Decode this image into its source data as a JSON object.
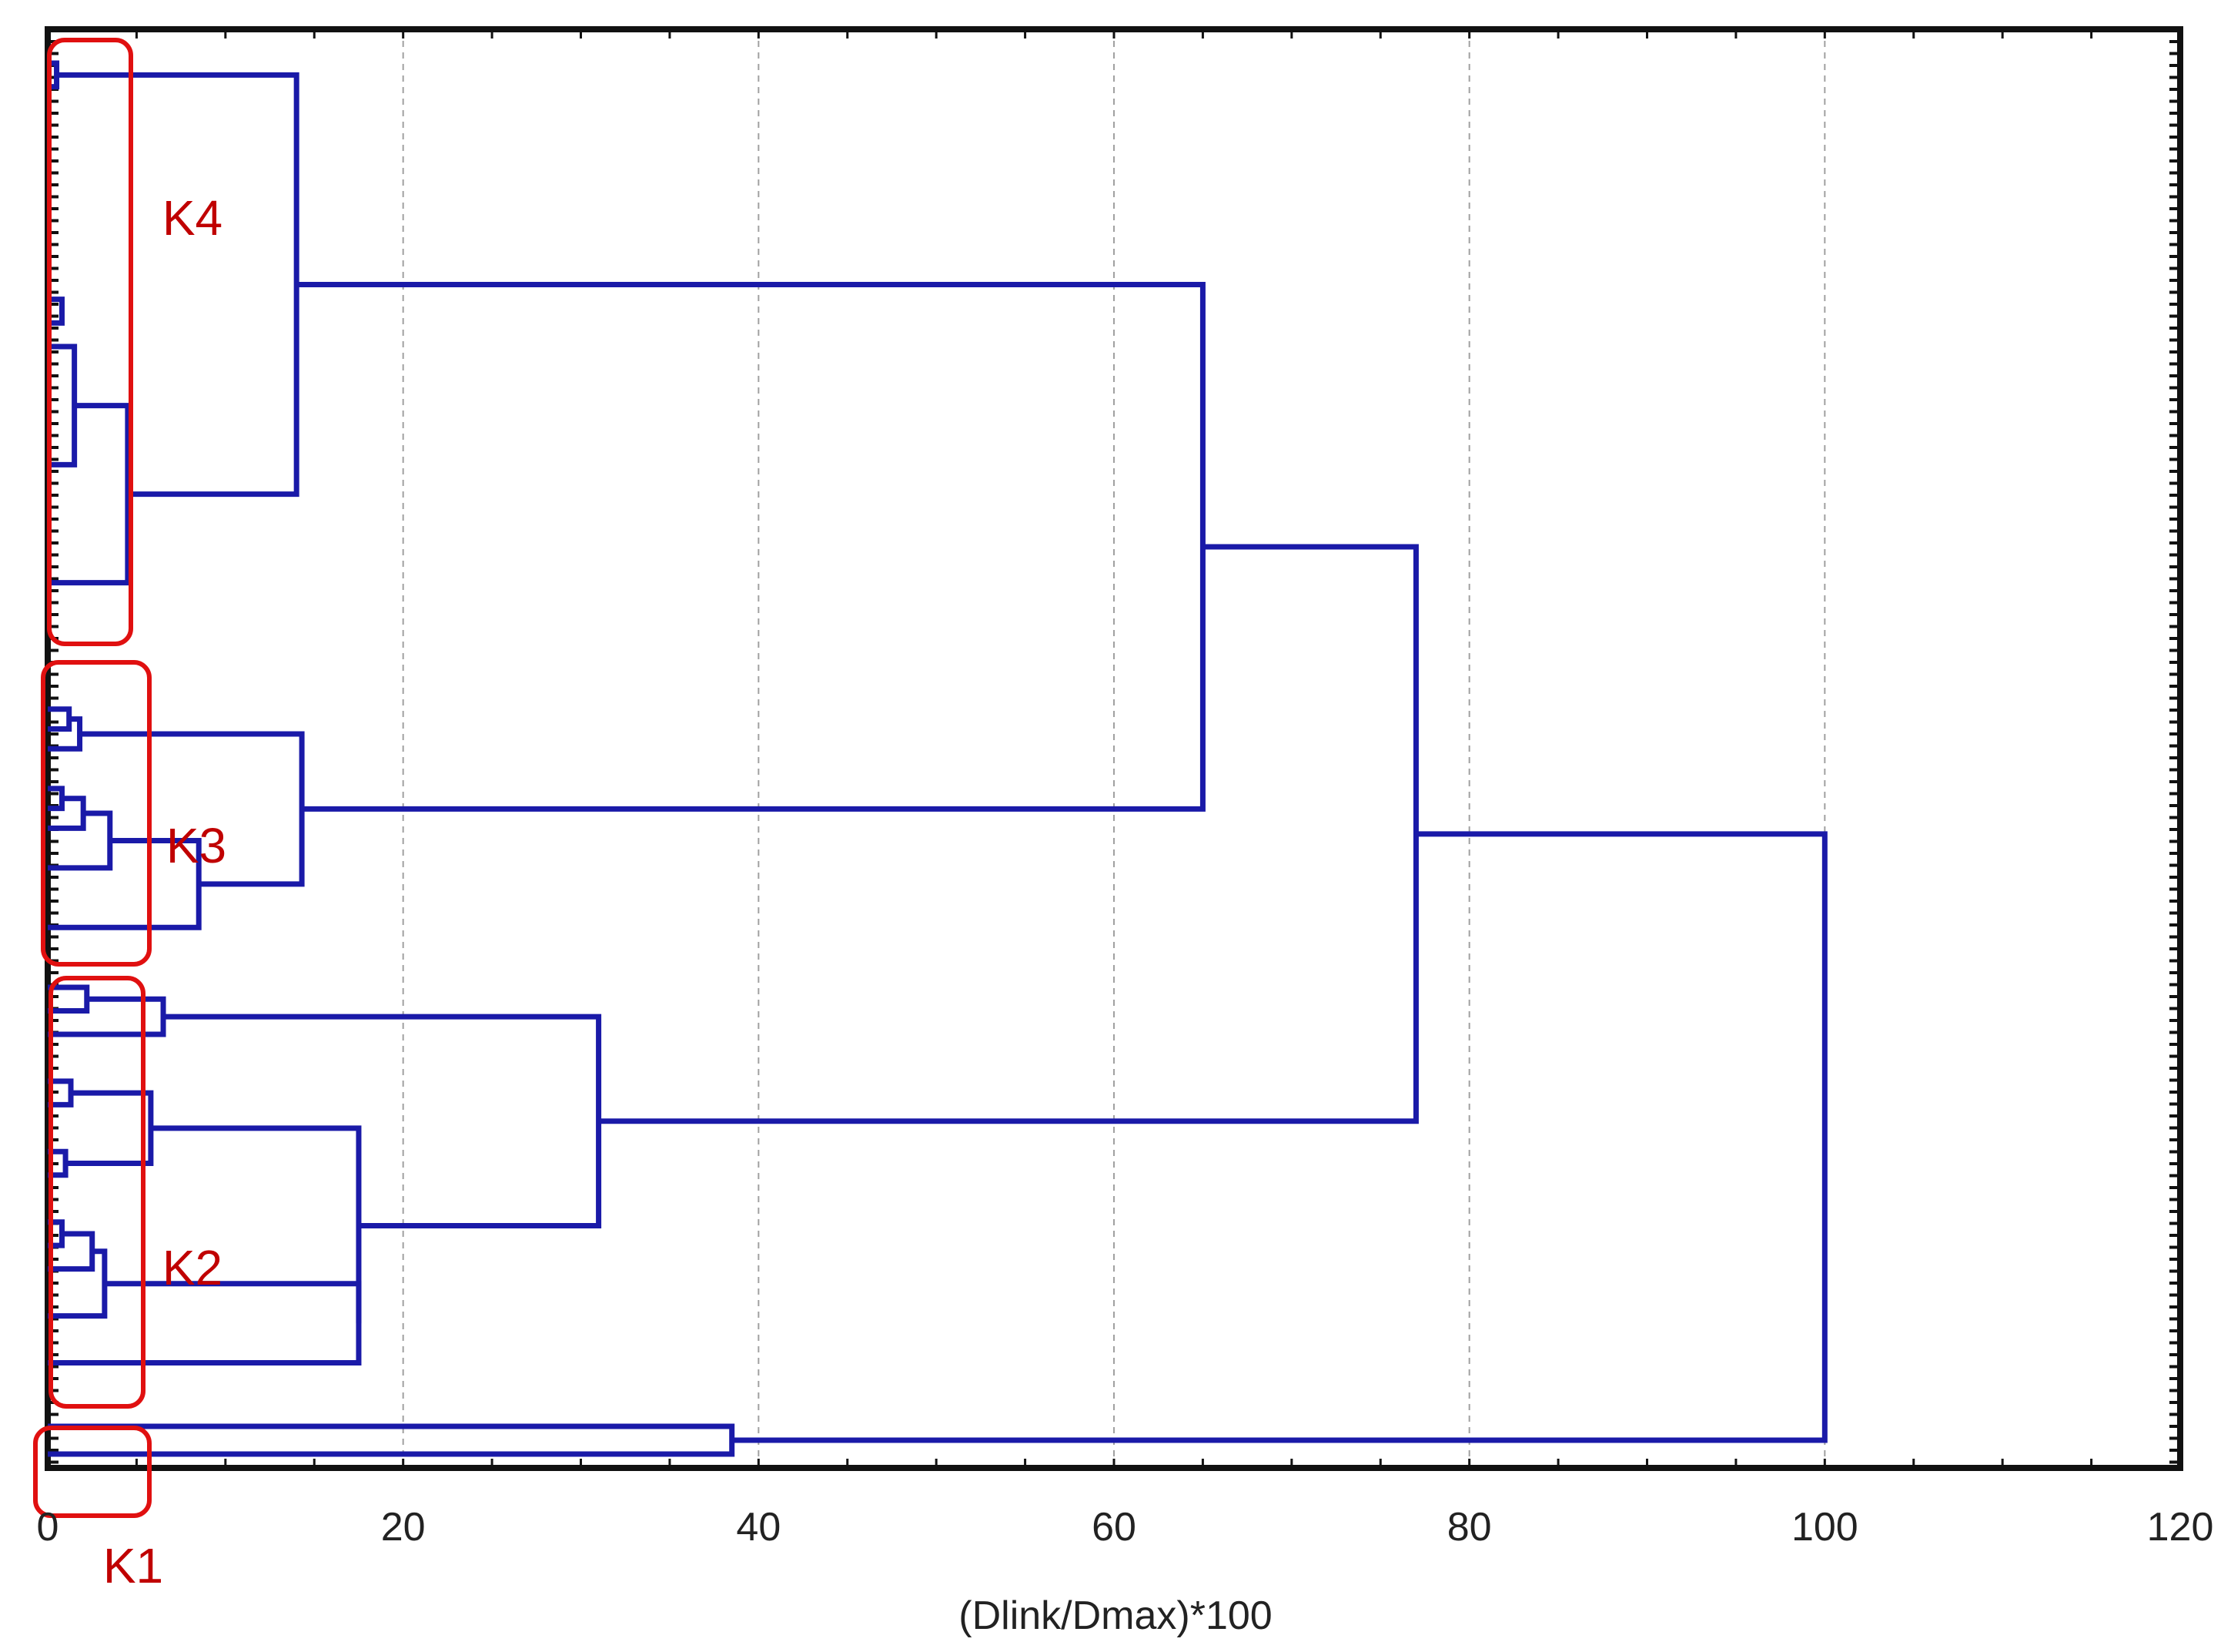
{
  "chart_data": {
    "type": "dendrogram",
    "orientation": "horizontal",
    "xlabel": "(Dlink/Dmax)*100",
    "xlim": [
      0,
      120
    ],
    "x_ticks": [
      "0",
      "20",
      "40",
      "60",
      "80",
      "100",
      "120"
    ],
    "grid": "vertical dashed",
    "colors": {
      "link": "#1a1aa8",
      "cluster_box": "#e01010",
      "cluster_label": "#c00000",
      "frame": "#111111",
      "grid": "#a0a0a0"
    },
    "clusters": [
      {
        "label": "K4",
        "leaf_range": [
          0,
          24
        ]
      },
      {
        "label": "K3",
        "leaf_range": [
          25,
          38
        ]
      },
      {
        "label": "K2",
        "leaf_range": [
          39,
          56
        ]
      },
      {
        "label": "K1",
        "leaf_range": [
          57,
          58
        ]
      }
    ],
    "merges": [
      {
        "id": "k4a",
        "children": [
          {
            "leaf": 0
          },
          {
            "leaf": 1
          }
        ],
        "height": 0.5
      },
      {
        "id": "k4b",
        "children": [
          {
            "leaf": 10
          },
          {
            "leaf": 11
          }
        ],
        "height": 0.8
      },
      {
        "id": "k4c",
        "children": [
          {
            "leaf": 12
          },
          {
            "leaf": 17
          }
        ],
        "height": 1.5
      },
      {
        "id": "k4d",
        "children": [
          {
            "node": "k4c"
          },
          {
            "leaf": 22
          }
        ],
        "height": 4.5
      },
      {
        "id": "k4e",
        "children": [
          {
            "node": "k4a"
          },
          {
            "node": "k4d"
          }
        ],
        "height": 14
      },
      {
        "id": "k3a",
        "children": [
          {
            "leaf": 26
          },
          {
            "leaf": 27
          }
        ],
        "height": 1.2
      },
      {
        "id": "k3b",
        "children": [
          {
            "node": "k3a"
          },
          {
            "leaf": 28
          }
        ],
        "height": 1.8
      },
      {
        "id": "k3c",
        "children": [
          {
            "leaf": 30
          },
          {
            "leaf": 31
          }
        ],
        "height": 0.8
      },
      {
        "id": "k3d",
        "children": [
          {
            "node": "k3c"
          },
          {
            "leaf": 32
          }
        ],
        "height": 2
      },
      {
        "id": "k3e",
        "children": [
          {
            "node": "k3d"
          },
          {
            "leaf": 34
          }
        ],
        "height": 3.5
      },
      {
        "id": "k3f",
        "children": [
          {
            "node": "k3e"
          },
          {
            "leaf": 37
          }
        ],
        "height": 8.5
      },
      {
        "id": "k3g",
        "children": [
          {
            "node": "k3b"
          },
          {
            "node": "k3f"
          }
        ],
        "height": 14.3
      },
      {
        "id": "k2a",
        "children": [
          {
            "leaf": 39
          },
          {
            "leaf": 40
          }
        ],
        "height": 2.2
      },
      {
        "id": "k2b",
        "children": [
          {
            "node": "k2a"
          },
          {
            "leaf": 41
          }
        ],
        "height": 6.5
      },
      {
        "id": "k2c",
        "children": [
          {
            "leaf": 43
          },
          {
            "leaf": 44
          }
        ],
        "height": 1.3
      },
      {
        "id": "k2d",
        "children": [
          {
            "leaf": 46
          },
          {
            "leaf": 47
          }
        ],
        "height": 1
      },
      {
        "id": "k2e",
        "children": [
          {
            "node": "k2c"
          },
          {
            "node": "k2d"
          }
        ],
        "height": 5.8
      },
      {
        "id": "k2f",
        "children": [
          {
            "leaf": 49
          },
          {
            "leaf": 50
          }
        ],
        "height": 0.8
      },
      {
        "id": "k2g",
        "children": [
          {
            "node": "k2f"
          },
          {
            "leaf": 51
          }
        ],
        "height": 2.5
      },
      {
        "id": "k2h",
        "children": [
          {
            "node": "k2g"
          },
          {
            "leaf": 53
          }
        ],
        "height": 3.2
      },
      {
        "id": "k2i",
        "children": [
          {
            "node": "k2h"
          },
          {
            "leaf": 55
          }
        ],
        "height": 17.5
      },
      {
        "id": "k2j",
        "children": [
          {
            "node": "k2e"
          },
          {
            "node": "k2i"
          }
        ],
        "height": 17.5
      },
      {
        "id": "k2k",
        "children": [
          {
            "node": "k2b"
          },
          {
            "node": "k2j"
          }
        ],
        "height": 31
      },
      {
        "id": "k1a",
        "children": [
          {
            "leaf": 57
          },
          {
            "leaf": 58
          }
        ],
        "height": 38.5
      },
      {
        "id": "m1",
        "children": [
          {
            "node": "k4e"
          },
          {
            "node": "k3g"
          }
        ],
        "height": 65
      },
      {
        "id": "m2",
        "children": [
          {
            "node": "m1"
          },
          {
            "node": "k2k"
          }
        ],
        "height": 77
      },
      {
        "id": "root",
        "children": [
          {
            "node": "m2"
          },
          {
            "node": "k1a"
          }
        ],
        "height": 100
      }
    ]
  }
}
